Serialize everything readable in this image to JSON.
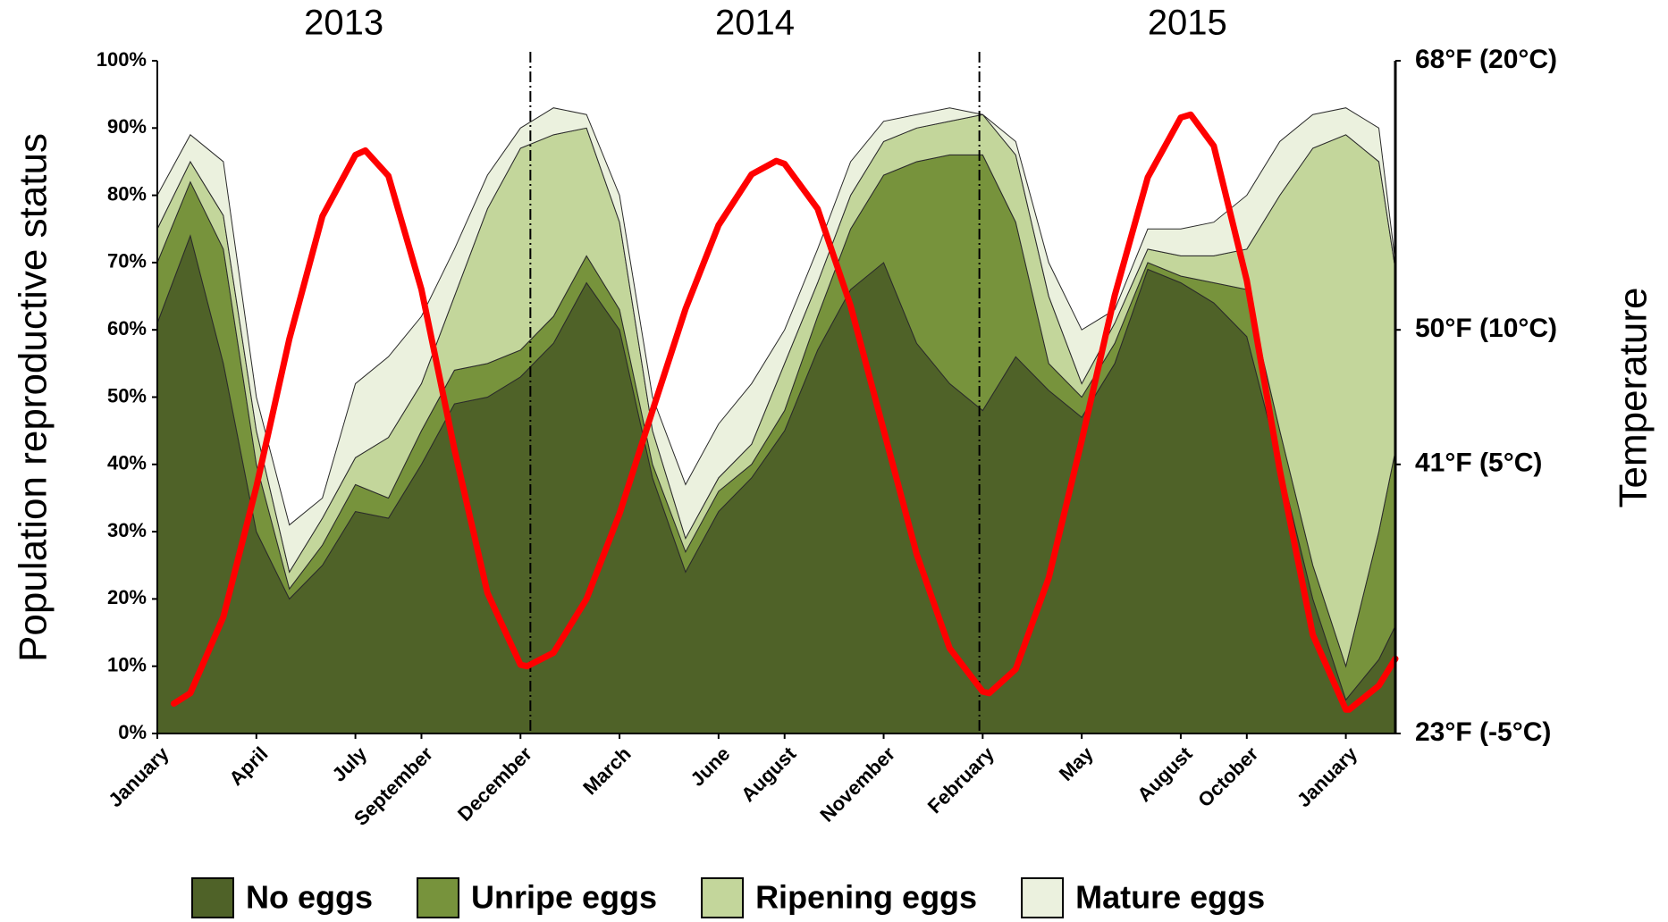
{
  "chart_data": {
    "type": "area",
    "ylabel": "Population reproductive status",
    "y2label": "Temperature",
    "x": [
      0,
      1,
      2,
      3,
      4,
      5,
      6,
      7,
      8,
      9,
      10,
      11,
      12,
      13,
      14,
      15,
      16,
      17,
      18,
      19,
      20,
      21,
      22,
      23,
      24,
      25,
      26,
      27,
      28,
      29,
      30,
      31,
      32,
      33,
      34,
      35,
      36,
      37,
      37.5
    ],
    "xlim": [
      0,
      37.5
    ],
    "xticks": [
      {
        "value": 0,
        "label": "January"
      },
      {
        "value": 3,
        "label": "April"
      },
      {
        "value": 6,
        "label": "July"
      },
      {
        "value": 8,
        "label": "September"
      },
      {
        "value": 11,
        "label": "December"
      },
      {
        "value": 14,
        "label": "March"
      },
      {
        "value": 17,
        "label": "June"
      },
      {
        "value": 19,
        "label": "August"
      },
      {
        "value": 22,
        "label": "November"
      },
      {
        "value": 25,
        "label": "February"
      },
      {
        "value": 28,
        "label": "May"
      },
      {
        "value": 31,
        "label": "August"
      },
      {
        "value": 33,
        "label": "October"
      },
      {
        "value": 36,
        "label": "January"
      }
    ],
    "ylim": [
      0,
      100
    ],
    "yticks": [
      {
        "value": 0,
        "label": "0%"
      },
      {
        "value": 10,
        "label": "10%"
      },
      {
        "value": 20,
        "label": "20%"
      },
      {
        "value": 30,
        "label": "30%"
      },
      {
        "value": 40,
        "label": "40%"
      },
      {
        "value": 50,
        "label": "50%"
      },
      {
        "value": 60,
        "label": "60%"
      },
      {
        "value": 70,
        "label": "70%"
      },
      {
        "value": 80,
        "label": "80%"
      },
      {
        "value": 90,
        "label": "90%"
      },
      {
        "value": 100,
        "label": "100%"
      }
    ],
    "y2lim": [
      23,
      68
    ],
    "y2ticks": [
      {
        "value": 23,
        "label": "23°F (-5°C)"
      },
      {
        "value": 41,
        "label": "41°F (5°C)"
      },
      {
        "value": 50,
        "label": "50°F (10°C)"
      },
      {
        "value": 68,
        "label": "68°F (20°C)"
      }
    ],
    "years": [
      {
        "label": "2013",
        "start": 0,
        "end": 11.3
      },
      {
        "label": "2014",
        "start": 11.3,
        "end": 24.9
      },
      {
        "label": "2015",
        "start": 24.9,
        "end": 37.5
      }
    ],
    "stacked": true,
    "series": [
      {
        "name": "No eggs",
        "color": "#4f6228",
        "values": [
          61,
          74,
          55,
          30,
          20,
          25,
          33,
          32,
          40,
          49,
          50,
          53,
          58,
          67,
          60,
          38,
          24,
          33,
          38,
          45,
          57,
          66,
          70,
          58,
          52,
          48,
          56,
          51,
          47,
          55,
          69,
          67,
          64,
          59,
          40,
          20,
          5,
          11,
          16
        ]
      },
      {
        "name": "Unripe eggs",
        "color": "#77933c",
        "values": [
          9,
          8,
          17,
          10,
          1.5,
          3,
          4,
          3,
          5,
          5,
          5,
          4,
          4,
          4,
          3,
          2,
          3,
          3,
          2,
          3,
          5,
          9,
          13,
          27,
          34,
          38,
          20,
          4,
          3,
          3,
          1,
          1,
          3,
          7,
          5,
          5,
          5,
          19,
          26
        ]
      },
      {
        "name": "Ripening eggs",
        "color": "#c3d69b",
        "values": [
          5,
          3,
          5,
          5,
          2.5,
          4,
          4,
          9,
          7,
          11,
          23,
          30,
          27,
          19,
          13,
          5,
          2,
          2,
          3,
          7,
          5,
          5,
          5,
          5,
          5,
          6,
          10,
          10,
          2,
          3,
          2,
          3,
          4,
          6,
          35,
          62,
          79,
          55,
          27
        ]
      },
      {
        "name": "Mature eggs",
        "color": "#ebf1de",
        "values": [
          5,
          4,
          8,
          5,
          7,
          3,
          11,
          12,
          10,
          7,
          5,
          3,
          4,
          2,
          4,
          5,
          8,
          8,
          9,
          5,
          5,
          5,
          3,
          2,
          2,
          0,
          2,
          5,
          8,
          2,
          3,
          4,
          5,
          8,
          8,
          5,
          4,
          5,
          1
        ]
      },
      {
        "type": "line",
        "axis": "y2",
        "color": "#ff0000",
        "x": [
          0.5,
          1,
          2,
          3,
          4,
          5,
          6,
          6.3,
          7,
          8,
          9,
          10,
          11,
          11.2,
          12,
          13,
          14,
          15,
          16,
          17,
          18,
          18.75,
          19,
          20,
          21,
          22,
          23,
          24,
          25,
          25.2,
          26,
          27,
          28,
          29,
          30,
          31,
          31.3,
          32,
          33,
          34,
          35,
          36,
          36.1,
          37,
          37.5
        ],
        "values": [
          25.0,
          25.7,
          30.8,
          39.5,
          49.4,
          57.6,
          61.7,
          62.0,
          60.3,
          52.7,
          42.0,
          32.4,
          27.6,
          27.5,
          28.4,
          32.0,
          37.7,
          44.6,
          51.4,
          57.0,
          60.4,
          61.3,
          61.1,
          58.1,
          51.6,
          43.3,
          35.0,
          28.7,
          25.8,
          25.7,
          27.3,
          33.4,
          42.6,
          52.3,
          60.2,
          64.2,
          64.4,
          62.3,
          53.3,
          40.6,
          29.6,
          24.6,
          24.6,
          26.2,
          28.0
        ]
      }
    ]
  }
}
